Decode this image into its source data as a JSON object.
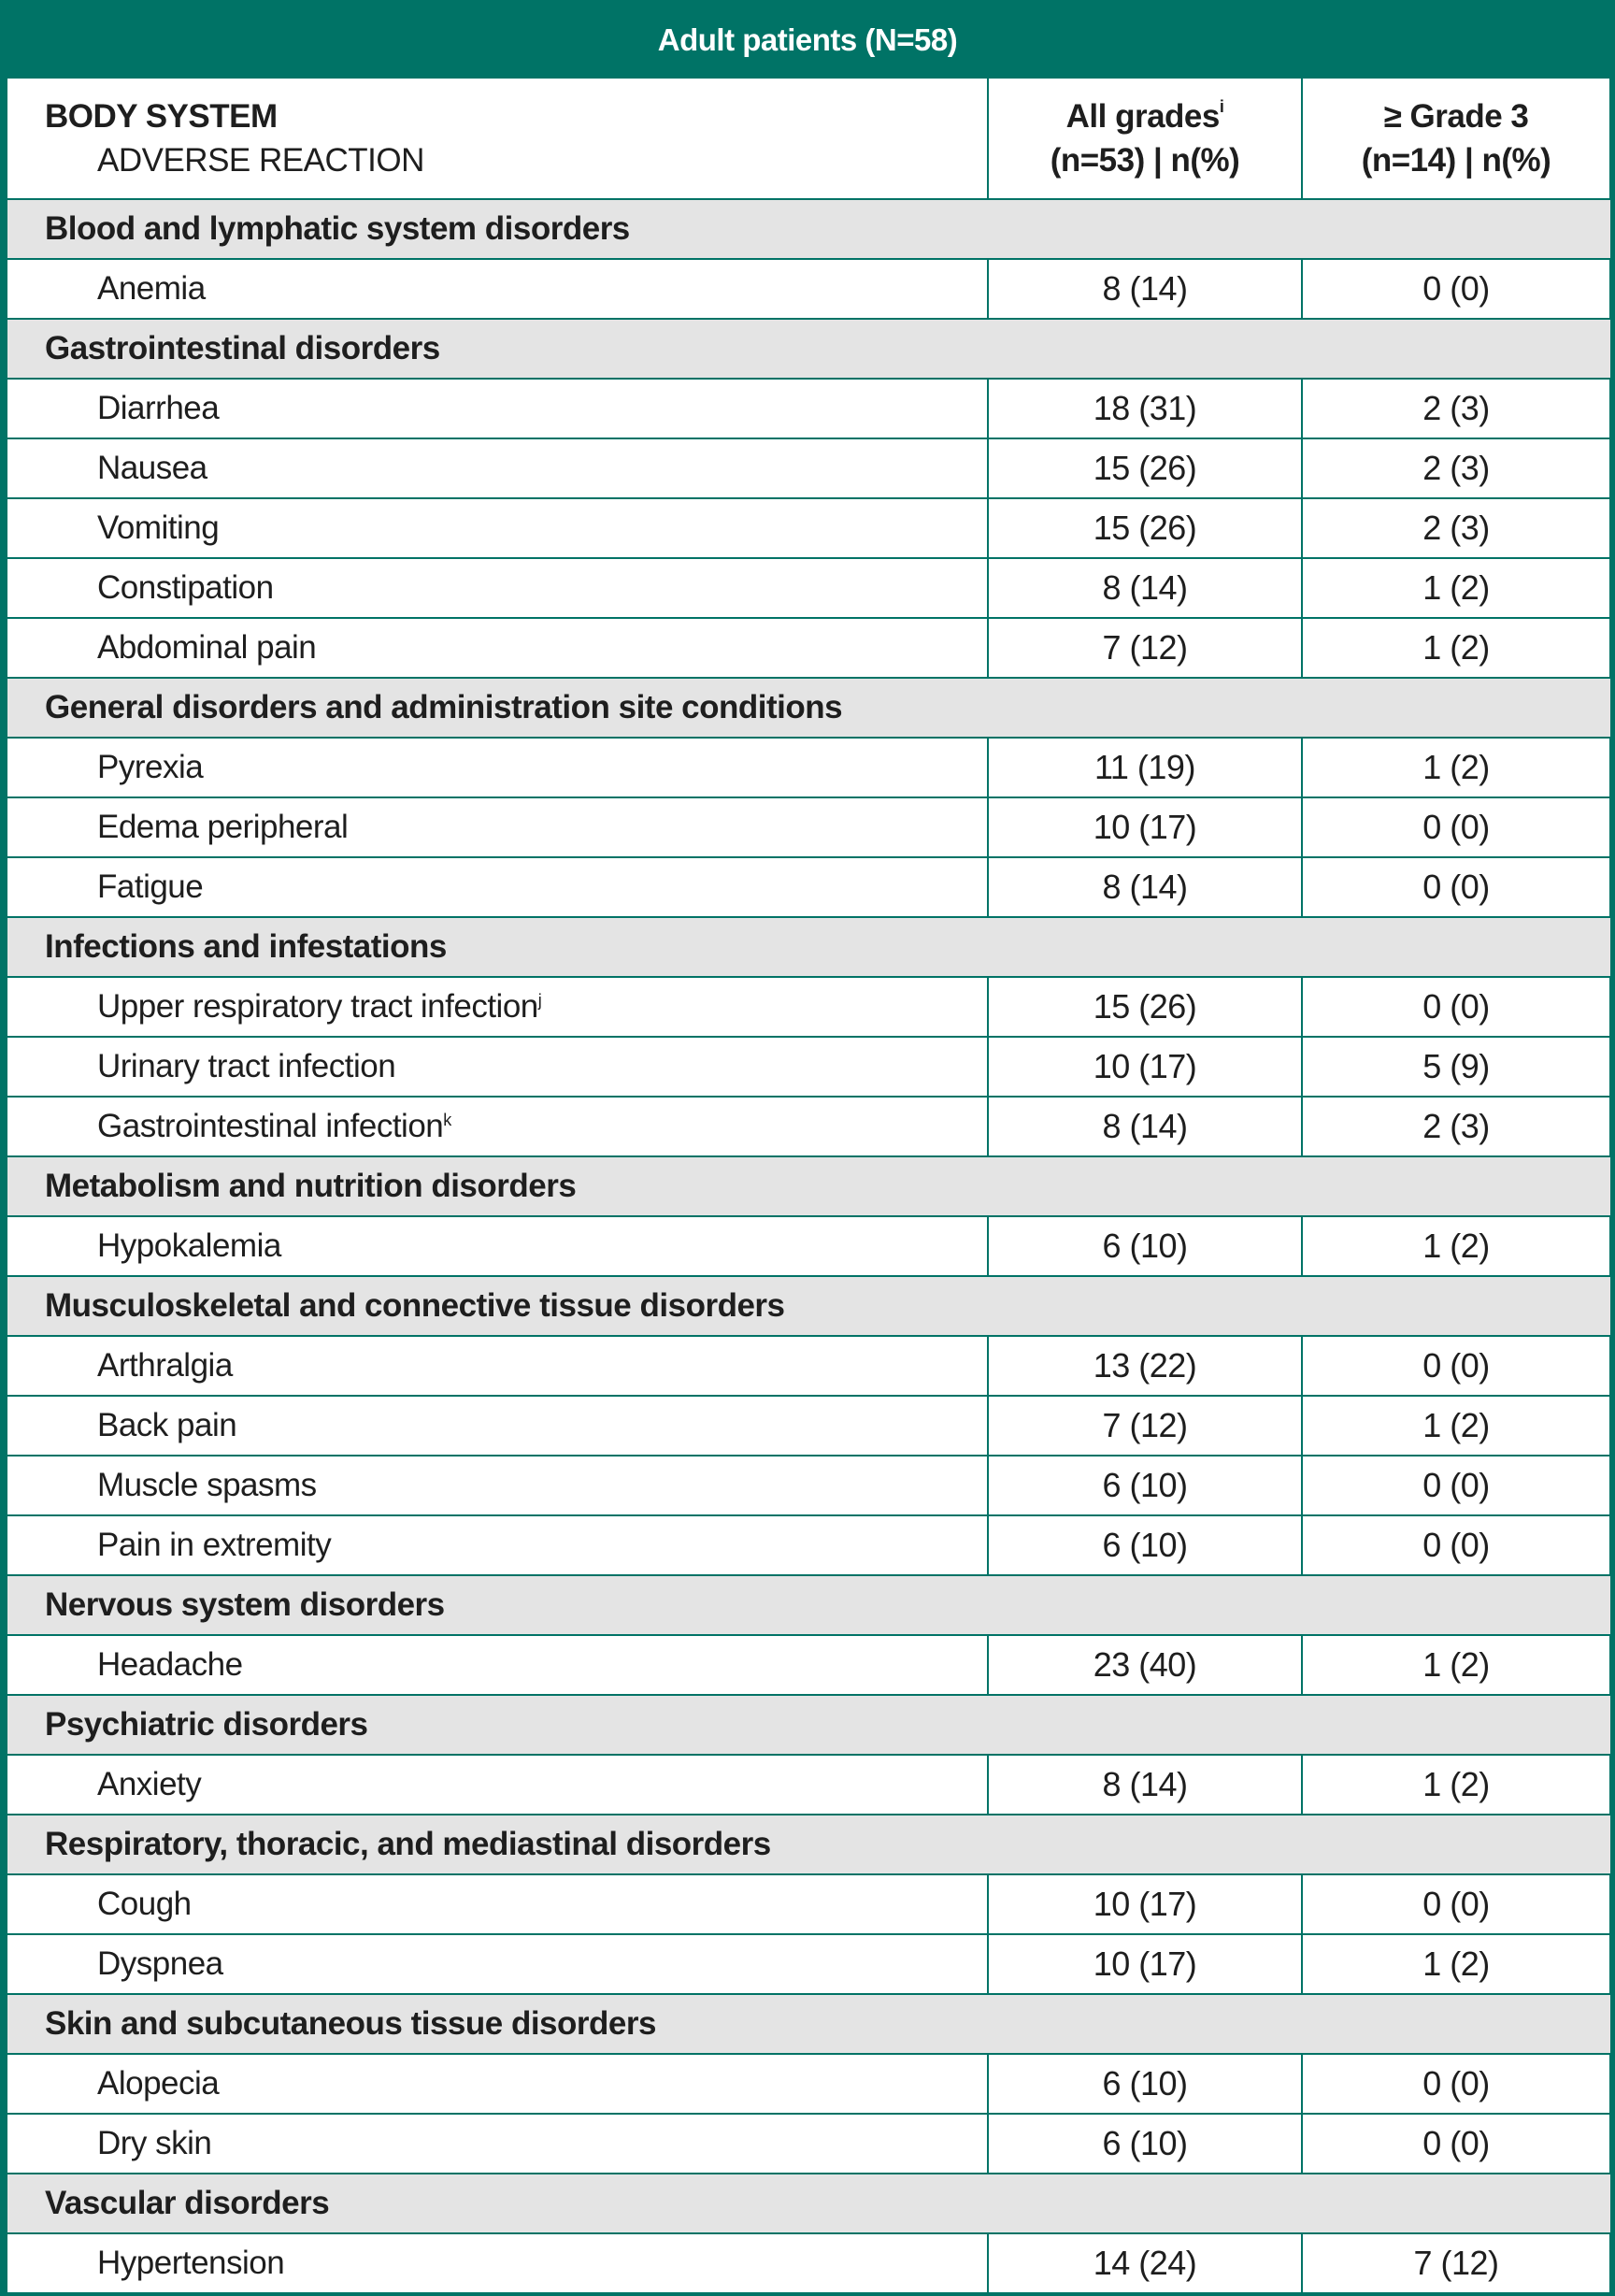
{
  "banner_title": "Adult patients (N=58)",
  "header": {
    "body_system": "BODY SYSTEM",
    "adverse_reaction": "ADVERSE REACTION",
    "all_grades_label": "All grades",
    "all_grades_footnote": "i",
    "all_grades_sub": "(n=53) | n(%)",
    "grade3_label": "≥ Grade 3",
    "grade3_sub": "(n=14) | n(%)"
  },
  "sections": [
    {
      "title": "Blood and lymphatic system disorders",
      "rows": [
        {
          "name": "Anemia",
          "all": "8 (14)",
          "g3": "0 (0)"
        }
      ]
    },
    {
      "title": "Gastrointestinal disorders",
      "rows": [
        {
          "name": "Diarrhea",
          "all": "18 (31)",
          "g3": "2 (3)"
        },
        {
          "name": "Nausea",
          "all": "15 (26)",
          "g3": "2 (3)"
        },
        {
          "name": "Vomiting",
          "all": "15 (26)",
          "g3": "2 (3)"
        },
        {
          "name": "Constipation",
          "all": "8 (14)",
          "g3": "1 (2)"
        },
        {
          "name": "Abdominal pain",
          "all": "7 (12)",
          "g3": "1 (2)"
        }
      ]
    },
    {
      "title": "General disorders and administration site conditions",
      "rows": [
        {
          "name": "Pyrexia",
          "all": "11 (19)",
          "g3": "1 (2)"
        },
        {
          "name": "Edema peripheral",
          "all": "10 (17)",
          "g3": "0 (0)"
        },
        {
          "name": "Fatigue",
          "all": "8 (14)",
          "g3": "0 (0)"
        }
      ]
    },
    {
      "title": "Infections and infestations",
      "rows": [
        {
          "name": "Upper respiratory tract infection",
          "fn": "j",
          "all": "15 (26)",
          "g3": "0 (0)"
        },
        {
          "name": "Urinary tract infection",
          "all": "10 (17)",
          "g3": "5 (9)"
        },
        {
          "name": "Gastrointestinal infection",
          "fn": "k",
          "all": "8 (14)",
          "g3": "2 (3)"
        }
      ]
    },
    {
      "title": "Metabolism and nutrition disorders",
      "rows": [
        {
          "name": "Hypokalemia",
          "all": "6 (10)",
          "g3": "1 (2)"
        }
      ]
    },
    {
      "title": "Musculoskeletal and connective tissue disorders",
      "rows": [
        {
          "name": "Arthralgia",
          "all": "13 (22)",
          "g3": "0 (0)"
        },
        {
          "name": "Back pain",
          "all": "7 (12)",
          "g3": "1 (2)"
        },
        {
          "name": "Muscle spasms",
          "all": "6 (10)",
          "g3": "0 (0)"
        },
        {
          "name": "Pain in extremity",
          "all": "6 (10)",
          "g3": "0 (0)"
        }
      ]
    },
    {
      "title": "Nervous system disorders",
      "rows": [
        {
          "name": "Headache",
          "all": "23 (40)",
          "g3": "1 (2)"
        }
      ]
    },
    {
      "title": "Psychiatric disorders",
      "rows": [
        {
          "name": "Anxiety",
          "all": "8 (14)",
          "g3": "1 (2)"
        }
      ]
    },
    {
      "title": "Respiratory, thoracic, and mediastinal disorders",
      "rows": [
        {
          "name": "Cough",
          "all": "10 (17)",
          "g3": "0 (0)"
        },
        {
          "name": "Dyspnea",
          "all": "10 (17)",
          "g3": "1 (2)"
        }
      ]
    },
    {
      "title": "Skin and subcutaneous tissue disorders",
      "rows": [
        {
          "name": "Alopecia",
          "all": "6 (10)",
          "g3": "0 (0)"
        },
        {
          "name": "Dry skin",
          "all": "6 (10)",
          "g3": "0 (0)"
        }
      ]
    },
    {
      "title": "Vascular disorders",
      "rows": [
        {
          "name": "Hypertension",
          "all": "14 (24)",
          "g3": "7 (12)"
        }
      ]
    }
  ]
}
